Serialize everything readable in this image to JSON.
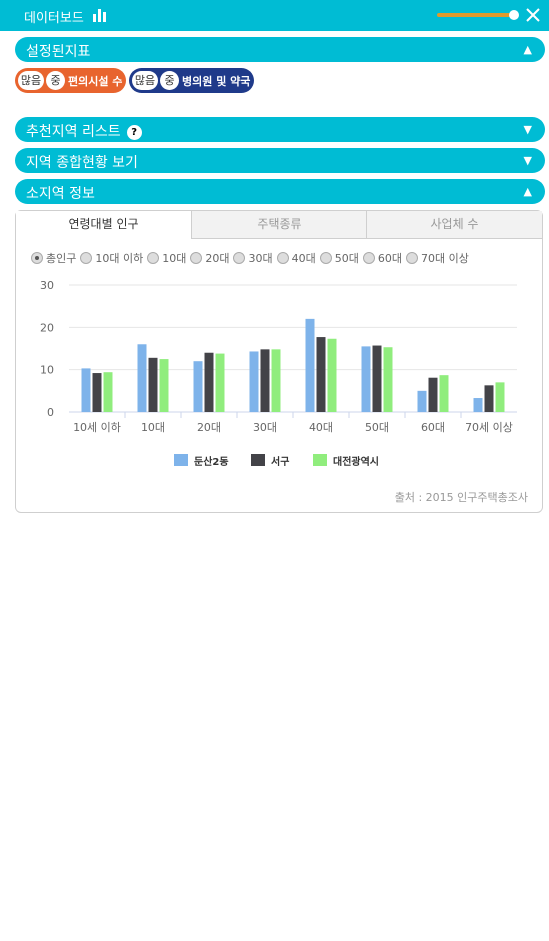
{
  "header": {
    "title": "데이터보드",
    "slider_level": 0.9
  },
  "sections": {
    "indicators": {
      "label": "설정된지표",
      "arrow": "▲"
    },
    "recommend": {
      "label": "추천지역 리스트",
      "help": "?",
      "arrow": "▼"
    },
    "overview": {
      "label": "지역 종합현황 보기",
      "arrow": "▼"
    },
    "small_area": {
      "label": "소지역 정보",
      "arrow": "▲"
    }
  },
  "tags": [
    {
      "level": "많음",
      "sub": "중",
      "text": "편의시설 수",
      "color": "#e8642e"
    },
    {
      "level": "많음",
      "sub": "중",
      "text": "병의원 및 약국",
      "color": "#1f3a8a"
    }
  ],
  "tabs": [
    "연령대별 인구",
    "주택종류",
    "사업체 수"
  ],
  "radios": [
    "총인구",
    "10대 이하",
    "10대",
    "20대",
    "30대",
    "40대",
    "50대",
    "60대",
    "70대 이상"
  ],
  "source": "출처 : 2015 인구주택총조사",
  "chart_data": {
    "type": "bar",
    "categories": [
      "10세 이하",
      "10대",
      "20대",
      "30대",
      "40대",
      "50대",
      "60대",
      "70세 이상"
    ],
    "series": [
      {
        "name": "둔산2동",
        "color": "#7eb3ea",
        "values": [
          10.3,
          16,
          12,
          14.3,
          22,
          15.5,
          5,
          3.3
        ]
      },
      {
        "name": "서구",
        "color": "#434348",
        "values": [
          9.2,
          12.8,
          14,
          14.8,
          17.7,
          15.7,
          8.1,
          6.3
        ]
      },
      {
        "name": "대전광역시",
        "color": "#90ed7d",
        "values": [
          9.4,
          12.5,
          13.8,
          14.8,
          17.3,
          15.3,
          8.7,
          7
        ]
      }
    ],
    "ylim": [
      0,
      30
    ],
    "yticks": [
      0,
      10,
      20,
      30
    ],
    "grid": true,
    "legend": "bottom"
  }
}
